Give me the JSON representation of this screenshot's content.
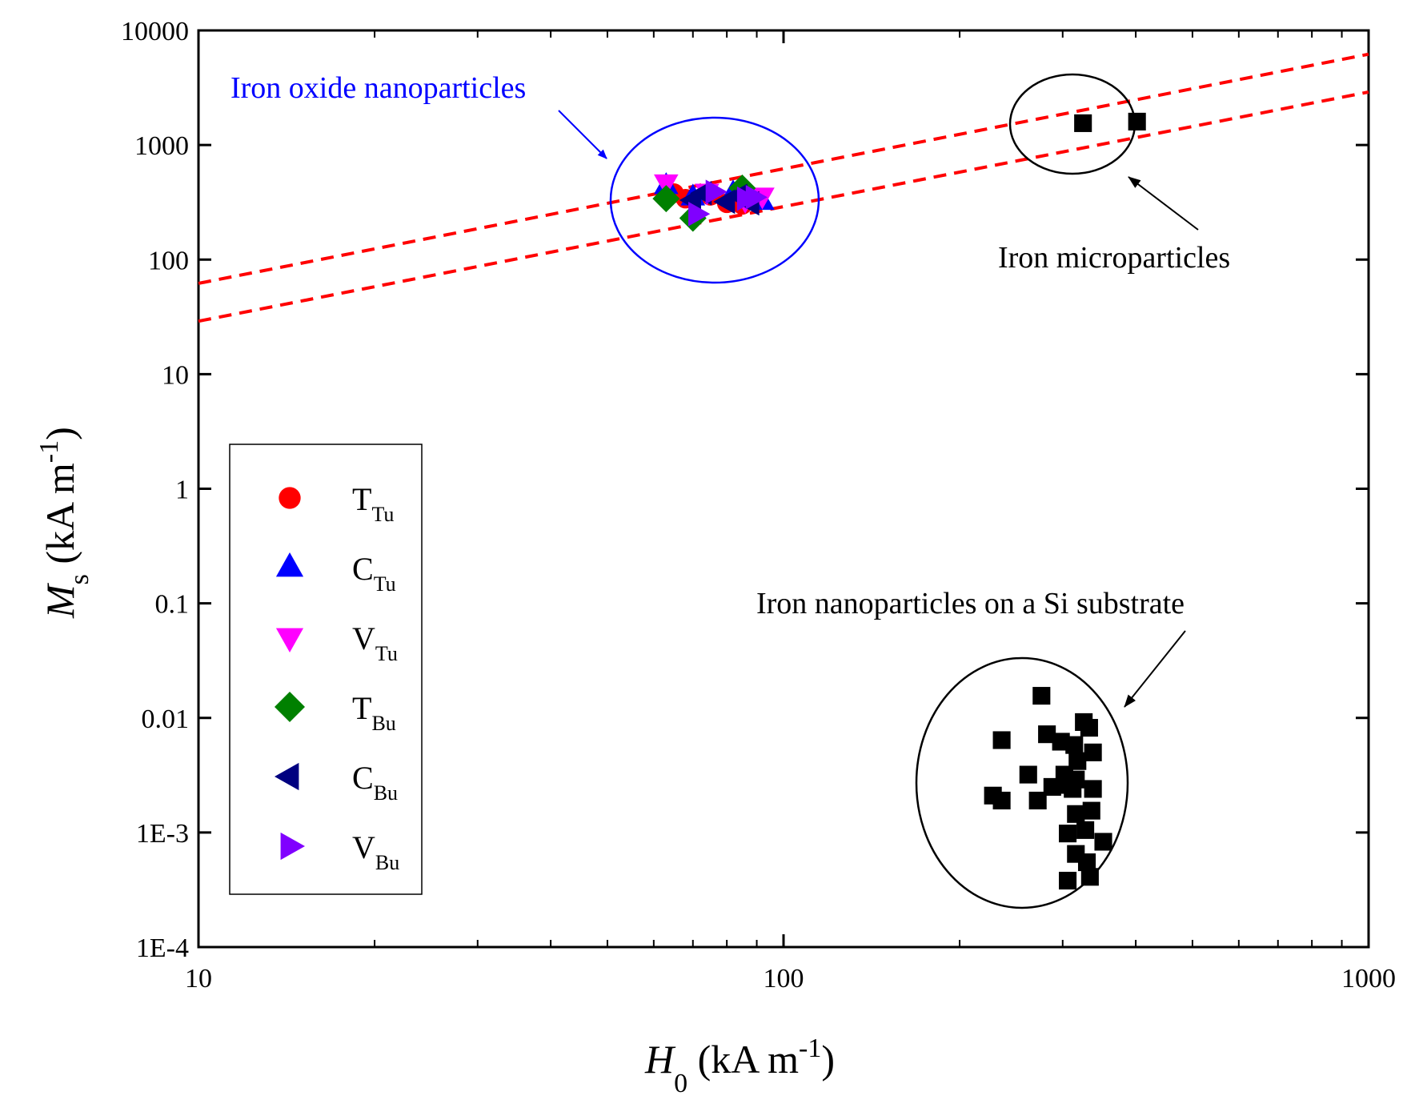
{
  "chart_data": {
    "type": "scatter",
    "xscale": "log",
    "yscale": "log",
    "xlim": [
      10,
      1000
    ],
    "ylim": [
      0.0001,
      10000
    ],
    "xlabel": {
      "main": "H",
      "sub": "0",
      "unit_pre": " (kA m",
      "sup": "-1",
      "unit_post": ")"
    },
    "ylabel": {
      "main": "M",
      "sub": "s",
      "unit_pre": " (kA m",
      "sup": "-1",
      "unit_post": ")"
    },
    "x_ticks": [
      {
        "value": 10,
        "label": "10"
      },
      {
        "value": 100,
        "label": "100"
      },
      {
        "value": 1000,
        "label": "1000"
      }
    ],
    "y_ticks": [
      {
        "value": 0.0001,
        "label": "1E-4"
      },
      {
        "value": 0.001,
        "label": "1E-3"
      },
      {
        "value": 0.01,
        "label": "0.01"
      },
      {
        "value": 0.1,
        "label": "0.1"
      },
      {
        "value": 1,
        "label": "1"
      },
      {
        "value": 10,
        "label": "10"
      },
      {
        "value": 100,
        "label": "100"
      },
      {
        "value": 1000,
        "label": "1000"
      },
      {
        "value": 10000,
        "label": "10000"
      }
    ],
    "series": [
      {
        "name": "T_Tu",
        "label": "T",
        "sub": "Tu",
        "marker": "circle",
        "color": "#ff0000",
        "points": [
          [
            65,
            380
          ],
          [
            68,
            340
          ],
          [
            75,
            360
          ],
          [
            80,
            310
          ],
          [
            85,
            300
          ],
          [
            88,
            330
          ]
        ]
      },
      {
        "name": "C_Tu",
        "label": "C",
        "sub": "Tu",
        "marker": "triangle-up",
        "color": "#0000ff",
        "points": [
          [
            63,
            440
          ],
          [
            70,
            350
          ],
          [
            82,
            380
          ],
          [
            88,
            340
          ],
          [
            92,
            320
          ]
        ]
      },
      {
        "name": "V_Tu",
        "label": "V",
        "sub": "Tu",
        "marker": "triangle-down",
        "color": "#ff00ff",
        "points": [
          [
            63,
            470
          ],
          [
            74,
            390
          ],
          [
            86,
            330
          ],
          [
            92,
            360
          ]
        ]
      },
      {
        "name": "T_Bu",
        "label": "T",
        "sub": "Bu",
        "marker": "diamond",
        "color": "#008000",
        "points": [
          [
            63,
            340
          ],
          [
            70,
            230
          ],
          [
            85,
            420
          ]
        ]
      },
      {
        "name": "C_Bu",
        "label": "C",
        "sub": "Bu",
        "marker": "triangle-left",
        "color": "#000080",
        "points": [
          [
            70,
            330
          ],
          [
            73,
            380
          ],
          [
            80,
            320
          ],
          [
            84,
            360
          ],
          [
            88,
            310
          ]
        ]
      },
      {
        "name": "V_Bu",
        "label": "V",
        "sub": "Bu",
        "marker": "triangle-right",
        "color": "#8000ff",
        "points": [
          [
            71,
            250
          ],
          [
            76,
            390
          ],
          [
            86,
            340
          ],
          [
            89,
            350
          ]
        ]
      },
      {
        "name": "Iron microparticles",
        "marker": "square",
        "color": "#000000",
        "in_legend": false,
        "points": [
          [
            325,
            1550
          ],
          [
            402,
            1600
          ]
        ]
      },
      {
        "name": "Iron nanoparticles on a Si substrate",
        "marker": "square",
        "color": "#000000",
        "in_legend": false,
        "points": [
          [
            236,
            0.0064
          ],
          [
            276,
            0.0156
          ],
          [
            262,
            0.0032
          ],
          [
            228,
            0.0021
          ],
          [
            236,
            0.0019
          ],
          [
            282,
            0.0072
          ],
          [
            298,
            0.0062
          ],
          [
            314,
            0.0058
          ],
          [
            326,
            0.0092
          ],
          [
            333,
            0.0082
          ],
          [
            318,
            0.0042
          ],
          [
            338,
            0.005
          ],
          [
            302,
            0.0032
          ],
          [
            316,
            0.0029
          ],
          [
            272,
            0.0019
          ],
          [
            288,
            0.0025
          ],
          [
            304,
            0.0026
          ],
          [
            312,
            0.0024
          ],
          [
            338,
            0.0024
          ],
          [
            316,
            0.00145
          ],
          [
            336,
            0.00155
          ],
          [
            328,
            0.00105
          ],
          [
            306,
            0.00098
          ],
          [
            352,
            0.00083
          ],
          [
            316,
            0.00065
          ],
          [
            330,
            0.00055
          ],
          [
            306,
            0.00038
          ],
          [
            334,
            0.00041
          ]
        ]
      }
    ],
    "reference_lines": [
      {
        "style": "dashed",
        "color": "#ff0000",
        "points": [
          [
            10,
            62
          ],
          [
            1000,
            6200
          ]
        ]
      },
      {
        "style": "dashed",
        "color": "#ff0000",
        "points": [
          [
            10,
            29
          ],
          [
            1000,
            2900
          ]
        ]
      }
    ],
    "regions": [
      {
        "label": "Iron oxide nanoparticles",
        "color": "#0000ff"
      },
      {
        "label": "Iron microparticles",
        "color": "#000000"
      },
      {
        "label": "Iron nanoparticles on a Si substrate",
        "color": "#000000"
      }
    ]
  }
}
